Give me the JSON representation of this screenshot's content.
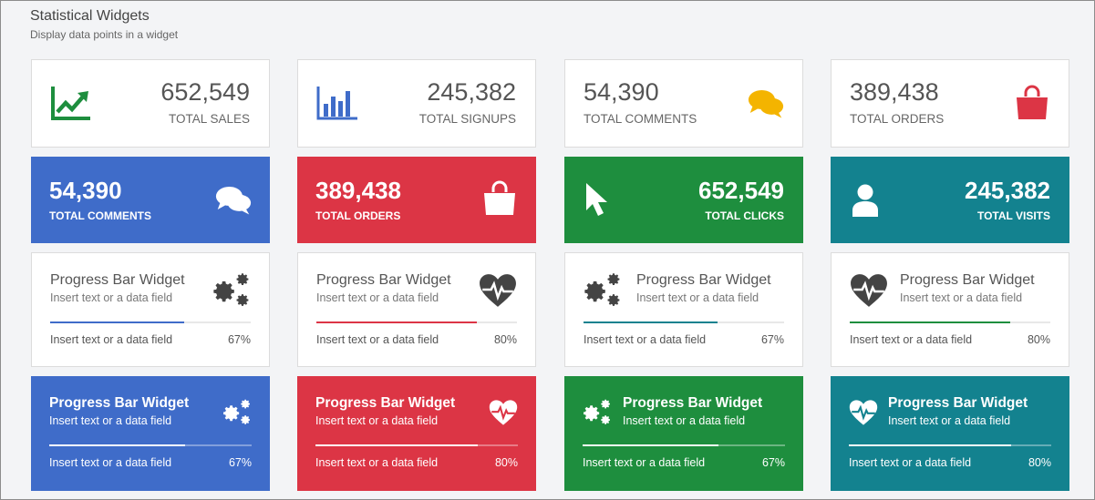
{
  "header": {
    "title": "Statistical Widgets",
    "subtitle": "Display data points in a widget"
  },
  "colors": {
    "blue": "#3f6cc9",
    "red": "#dc3545",
    "green": "#1e8e3e",
    "teal": "#13828f",
    "yellow": "#f4b400"
  },
  "row1": [
    {
      "value": "652,549",
      "label": "TOTAL SALES",
      "icon": "chart-line-icon"
    },
    {
      "value": "245,382",
      "label": "TOTAL SIGNUPS",
      "icon": "bar-chart-icon"
    },
    {
      "value": "54,390",
      "label": "TOTAL COMMENTS",
      "icon": "comments-icon"
    },
    {
      "value": "389,438",
      "label": "TOTAL ORDERS",
      "icon": "shopping-bag-icon"
    }
  ],
  "row2": [
    {
      "value": "54,390",
      "label": "TOTAL COMMENTS",
      "icon": "comments-icon"
    },
    {
      "value": "389,438",
      "label": "TOTAL ORDERS",
      "icon": "shopping-bag-icon"
    },
    {
      "value": "652,549",
      "label": "TOTAL CLICKS",
      "icon": "cursor-icon"
    },
    {
      "value": "245,382",
      "label": "TOTAL VISITS",
      "icon": "user-icon"
    }
  ],
  "row3": [
    {
      "title": "Progress Bar Widget",
      "sub": "Insert text or a data field",
      "foot": "Insert text or a data field",
      "pct": "67%",
      "progress": 0.67,
      "icon": "gears-icon"
    },
    {
      "title": "Progress Bar Widget",
      "sub": "Insert text or a data field",
      "foot": "Insert text or a data field",
      "pct": "80%",
      "progress": 0.8,
      "icon": "heartbeat-icon"
    },
    {
      "title": "Progress Bar Widget",
      "sub": "Insert text or a data field",
      "foot": "Insert text or a data field",
      "pct": "67%",
      "progress": 0.67,
      "icon": "gears-icon"
    },
    {
      "title": "Progress Bar Widget",
      "sub": "Insert text or a data field",
      "foot": "Insert text or a data field",
      "pct": "80%",
      "progress": 0.8,
      "icon": "heartbeat-icon"
    }
  ],
  "row4": [
    {
      "title": "Progress Bar Widget",
      "sub": "Insert text or a data field",
      "foot": "Insert text or a data field",
      "pct": "67%",
      "progress": 0.67,
      "icon": "gears-icon"
    },
    {
      "title": "Progress Bar Widget",
      "sub": "Insert text or a data field",
      "foot": "Insert text or a data field",
      "pct": "80%",
      "progress": 0.8,
      "icon": "heartbeat-icon"
    },
    {
      "title": "Progress Bar Widget",
      "sub": "Insert text or a data field",
      "foot": "Insert text or a data field",
      "pct": "67%",
      "progress": 0.67,
      "icon": "gears-icon"
    },
    {
      "title": "Progress Bar Widget",
      "sub": "Insert text or a data field",
      "foot": "Insert text or a data field",
      "pct": "80%",
      "progress": 0.8,
      "icon": "heartbeat-icon"
    }
  ]
}
